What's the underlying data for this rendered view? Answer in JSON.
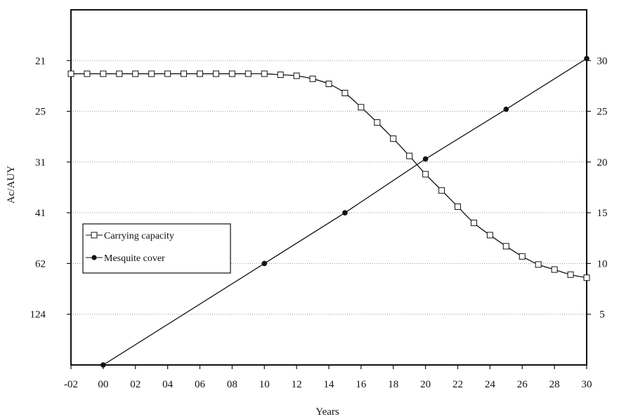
{
  "chart_data": {
    "type": "line",
    "title": "",
    "xlabel": "Years",
    "ylabel_left": "Ac/AUY",
    "ylabel_right": "",
    "xlim": [
      -2,
      30
    ],
    "x_ticks": [
      -2,
      0,
      2,
      4,
      6,
      8,
      10,
      12,
      14,
      16,
      18,
      20,
      22,
      24,
      26,
      28,
      30
    ],
    "x_tick_labels": [
      "-02",
      "00",
      "02",
      "04",
      "06",
      "08",
      "10",
      "12",
      "14",
      "16",
      "18",
      "20",
      "22",
      "24",
      "26",
      "28",
      "30"
    ],
    "right_axis": {
      "ylim": [
        0,
        35
      ],
      "ticks": [
        5,
        10,
        15,
        20,
        25,
        30
      ],
      "tick_labels": [
        "5",
        "10",
        "15",
        "20",
        "25",
        "30"
      ]
    },
    "left_axis": {
      "tick_labels": [
        "21",
        "25",
        "31",
        "41",
        "62",
        "124"
      ],
      "aligned_to_right_values": [
        30,
        25,
        20,
        15,
        10,
        5
      ]
    },
    "grid": "horizontal dotted",
    "legend_position": "middle-left",
    "series": [
      {
        "name": "Carrying capacity",
        "marker": "open-square",
        "axis": "right",
        "x": [
          -2,
          -1,
          0,
          1,
          2,
          3,
          4,
          5,
          6,
          7,
          8,
          9,
          10,
          11,
          12,
          13,
          14,
          15,
          16,
          17,
          18,
          19,
          20,
          21,
          22,
          23,
          24,
          25,
          26,
          27,
          28,
          29,
          30
        ],
        "y": [
          28.7,
          28.7,
          28.7,
          28.7,
          28.7,
          28.7,
          28.7,
          28.7,
          28.7,
          28.7,
          28.7,
          28.7,
          28.7,
          28.6,
          28.5,
          28.2,
          27.7,
          26.8,
          25.4,
          23.9,
          22.3,
          20.6,
          18.8,
          17.2,
          15.6,
          14.0,
          12.8,
          11.7,
          10.7,
          9.9,
          9.4,
          8.9,
          8.6
        ]
      },
      {
        "name": "Mesquite cover",
        "marker": "filled-circle",
        "axis": "right",
        "x": [
          0,
          10,
          15,
          20,
          25,
          30
        ],
        "y": [
          0,
          10,
          15,
          20.3,
          25.2,
          30.2
        ]
      }
    ]
  }
}
